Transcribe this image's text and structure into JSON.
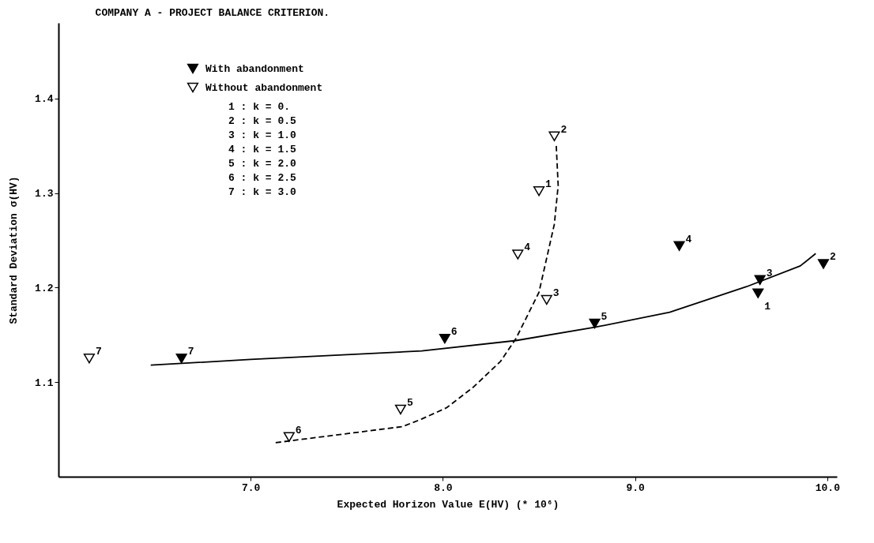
{
  "chart_data": {
    "type": "scatter",
    "title": "COMPANY A - PROJECT BALANCE CRITERION.",
    "xlabel": "Expected Horizon Value  E(HV)    (* 10⁶)",
    "ylabel": "Standard Deviation   σ(HV)",
    "xlim": [
      6.0,
      10.05
    ],
    "ylim": [
      1.0,
      1.48
    ],
    "xticks": [
      {
        "value": 7,
        "label": "7.0"
      },
      {
        "value": 8,
        "label": "8.0"
      },
      {
        "value": 9,
        "label": "9.0"
      },
      {
        "value": 10,
        "label": "10.0"
      }
    ],
    "yticks": [
      1.1,
      1.2,
      1.3,
      1.4
    ],
    "grid": false,
    "legend": "top left",
    "annotations": [
      "1 : k = 0.",
      "2 : k = 0.5",
      "3 : k = 1.0",
      "4 : k = 1.5",
      "5 : k = 2.0",
      "6 : k = 2.5",
      "7 : k = 3.0",
      {
        "text": "1",
        "x": 9.64,
        "y": 1.194
      },
      {
        "text": "2",
        "x": 9.98,
        "y": 1.225
      },
      {
        "text": "3",
        "x": 9.65,
        "y": 1.208
      },
      {
        "text": "4",
        "x": 9.23,
        "y": 1.244
      },
      {
        "text": "5",
        "x": 8.79,
        "y": 1.162
      },
      {
        "text": "6",
        "x": 8.01,
        "y": 1.146
      },
      {
        "text": "7",
        "x": 6.64,
        "y": 1.125
      },
      {
        "text": "1",
        "x": 8.5,
        "y": 1.302
      },
      {
        "text": "2",
        "x": 8.58,
        "y": 1.36
      },
      {
        "text": "3",
        "x": 8.54,
        "y": 1.187
      },
      {
        "text": "4",
        "x": 8.39,
        "y": 1.235
      },
      {
        "text": "5",
        "x": 7.78,
        "y": 1.071
      },
      {
        "text": "6",
        "x": 7.2,
        "y": 1.042
      },
      {
        "text": "7",
        "x": 6.16,
        "y": 1.125
      }
    ],
    "series": [
      {
        "type": "line",
        "color": "#000000",
        "line_style": "solid",
        "marker": "none",
        "x": [
          6.48,
          7.0,
          7.89,
          8.38,
          8.79,
          9.18,
          9.58,
          9.86,
          9.94
        ],
        "values": [
          1.118,
          1.124,
          1.133,
          1.144,
          1.158,
          1.174,
          1.201,
          1.223,
          1.236
        ]
      },
      {
        "type": "line",
        "color": "#000000",
        "line_style": "dashed",
        "marker": "none",
        "x": [
          7.13,
          7.79,
          7.89,
          8.02,
          8.16,
          8.3,
          8.38,
          8.5,
          8.58,
          8.6,
          8.59
        ],
        "values": [
          1.036,
          1.053,
          1.061,
          1.073,
          1.095,
          1.122,
          1.146,
          1.195,
          1.267,
          1.308,
          1.35
        ]
      },
      {
        "type": "scatter",
        "name": "With abandonment",
        "color": "#000000",
        "marker": "triangle",
        "x": [
          9.64,
          9.98,
          9.65,
          9.23,
          8.79,
          8.01,
          6.64
        ],
        "values": [
          1.194,
          1.225,
          1.208,
          1.244,
          1.162,
          1.146,
          1.125
        ]
      },
      {
        "type": "scatter",
        "name": "Without abandonment",
        "color": "#ffffff",
        "marker": "triangle",
        "x": [
          8.5,
          8.58,
          8.54,
          8.39,
          7.78,
          7.2,
          6.16
        ],
        "values": [
          1.302,
          1.36,
          1.187,
          1.235,
          1.071,
          1.042,
          1.125
        ]
      }
    ]
  }
}
